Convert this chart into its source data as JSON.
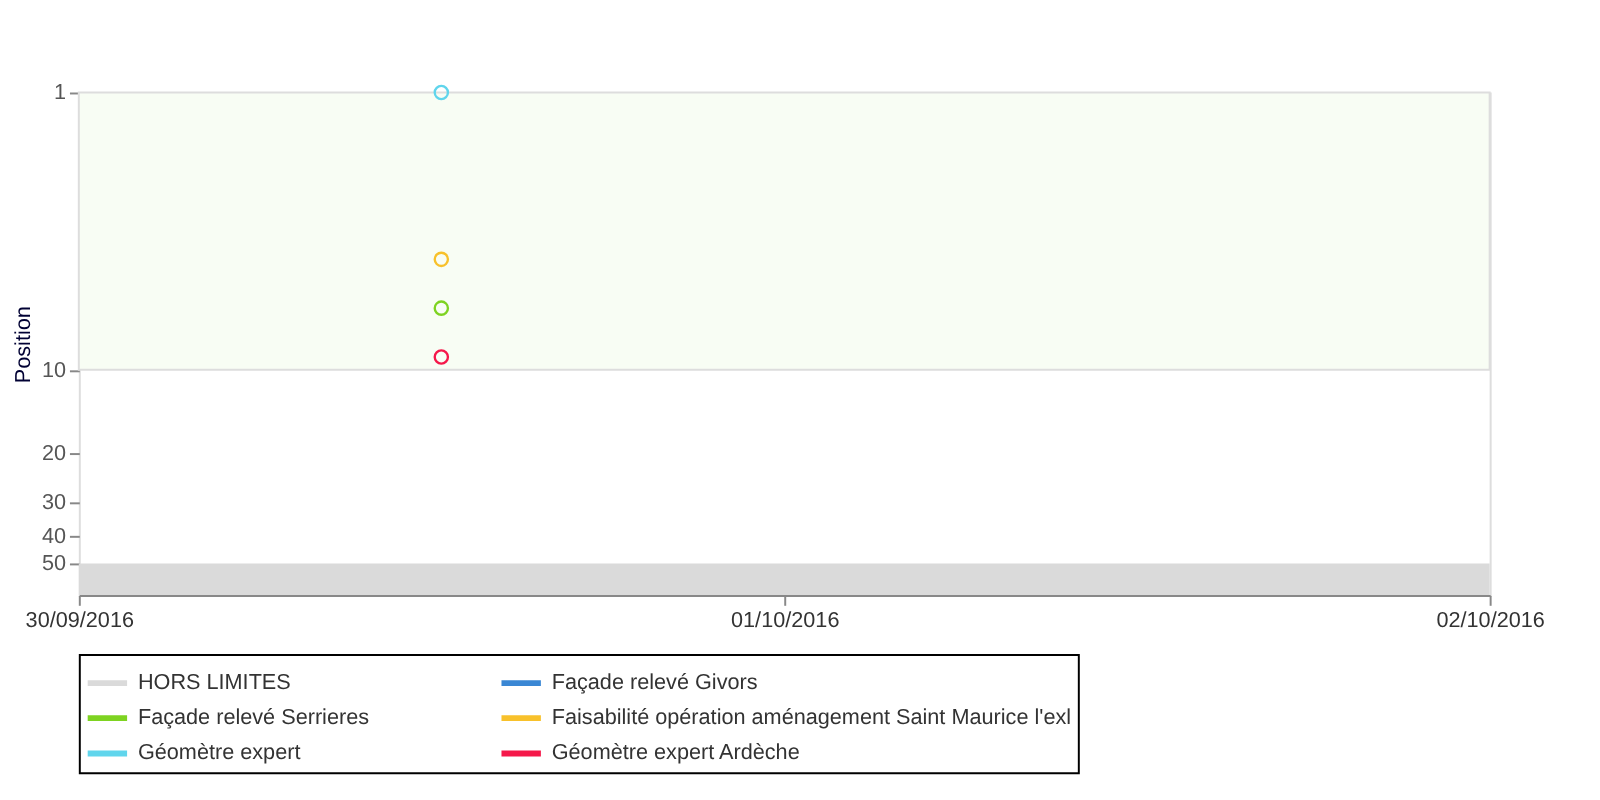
{
  "chart_data": {
    "type": "line",
    "ylabel": "Position",
    "log": "y",
    "ylim": [
      65,
      1
    ],
    "yticks": [
      1,
      10,
      20,
      30,
      40,
      50
    ],
    "x": [
      "2016-09-30T12:20"
    ],
    "xlim": [
      "2016-09-30T00:00",
      "2016-10-02T00:00"
    ],
    "xticks": [
      {
        "value": "2016-09-30T00:00",
        "label": "30/09/2016"
      },
      {
        "value": "2016-10-01T00:00",
        "label": "01/10/2016"
      },
      {
        "value": "2016-10-02T00:00",
        "label": "02/10/2016"
      }
    ],
    "grid": false,
    "marker": "circle",
    "line_style": "solid",
    "legend": "bottom",
    "bands": [
      {
        "axis": "y",
        "from": 1,
        "to": 10,
        "color": "#f8fdf4"
      },
      {
        "axis": "y",
        "from": 50,
        "to": 65,
        "label": "HORS LIMITES",
        "color": "#dadada"
      }
    ],
    "series": [
      {
        "name": "Façade relevé Givors",
        "color": "#3a87d4",
        "values": [
          null
        ]
      },
      {
        "name": "Façade relevé Serrieres",
        "color": "#7ed321",
        "values": [
          6
        ]
      },
      {
        "name": "Faisabilité opération aménagement Saint Maurice l'exl",
        "color": "#f8c12b",
        "values": [
          4
        ]
      },
      {
        "name": "Géomètre expert",
        "color": "#60d5ec",
        "values": [
          1
        ]
      },
      {
        "name": "Géomètre expert Ardèche",
        "color": "#f5184a",
        "values": [
          9
        ]
      }
    ]
  }
}
